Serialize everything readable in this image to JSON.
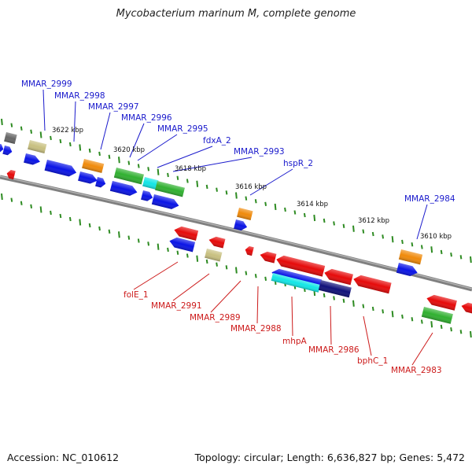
{
  "title": "Mycobacterium marinum M, complete genome",
  "footer": {
    "accession": "Accession: NC_010612",
    "summary": "Topology: circular; Length: 6,636,827 bp; Genes: 5,472"
  },
  "colors": {
    "backbone": "#808080",
    "tick": "#2e8b22",
    "forward_label": "#1a1acc",
    "reverse_label": "#cc1a1a",
    "blue": "#0a14e6",
    "red": "#e60a0a",
    "orange": "#f08a0a",
    "green": "#30b030",
    "cyan": "#12e6e6",
    "navy": "#10107a",
    "khaki": "#c8c080",
    "gray": "#666666"
  },
  "tick_labels": [
    "3622 kbp",
    "3620 kbp",
    "3618 kbp",
    "3616 kbp",
    "3614 kbp",
    "3612 kbp",
    "3610 kbp"
  ],
  "forward_labels": [
    "MMAR_2999",
    "MMAR_2998",
    "MMAR_2997",
    "MMAR_2996",
    "MMAR_2995",
    "fdxA_2",
    "MMAR_2993",
    "hspR_2",
    "MMAR_2984"
  ],
  "reverse_labels": [
    "folE_1",
    "MMAR_2991",
    "MMAR_2989",
    "MMAR_2988",
    "mhpA",
    "MMAR_2986",
    "bphC_1",
    "MMAR_2983"
  ]
}
